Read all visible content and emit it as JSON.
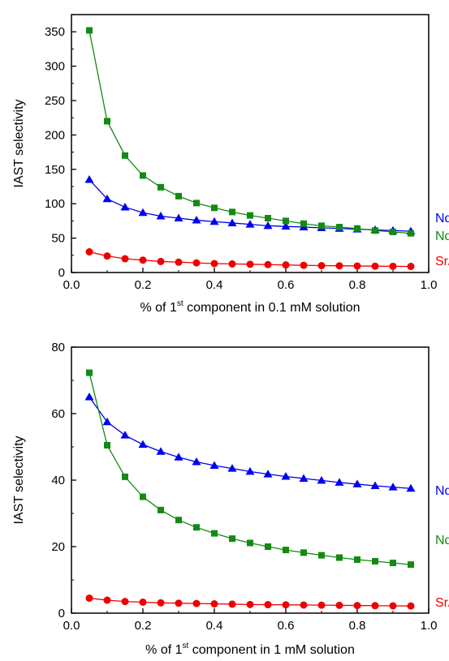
{
  "chart_data": [
    {
      "type": "line",
      "title": "",
      "ylabel": "IAST selectivity",
      "xlabel_parts": {
        "pre": "% of 1",
        "sup": "st",
        "post": " component in 0.1 mM solution"
      },
      "xlim": [
        0.0,
        1.0
      ],
      "ylim": [
        0,
        375
      ],
      "xticks": [
        0.0,
        0.2,
        0.4,
        0.6,
        0.8,
        1.0
      ],
      "xtick_labels": [
        "0.0",
        "0.2",
        "0.4",
        "0.6",
        "0.8",
        "1.0"
      ],
      "yticks": [
        0,
        50,
        100,
        150,
        200,
        250,
        300,
        350
      ],
      "ytick_labels": [
        "0",
        "50",
        "100",
        "150",
        "200",
        "250",
        "300",
        "350"
      ],
      "legend_placement": "right, labels at series end",
      "x": [
        0.05,
        0.1,
        0.15,
        0.2,
        0.25,
        0.3,
        0.35,
        0.4,
        0.45,
        0.5,
        0.55,
        0.6,
        0.65,
        0.7,
        0.75,
        0.8,
        0.85,
        0.9,
        0.95
      ],
      "series": [
        {
          "name": "Nd/Sr",
          "color": "#0000ee",
          "marker": "triangle",
          "values": [
            135,
            107,
            95,
            87,
            82,
            79,
            76,
            74,
            72,
            70,
            68,
            67,
            66,
            65,
            64,
            63,
            62,
            61,
            60
          ]
        },
        {
          "name": "Nd/Fe",
          "color": "#138a13",
          "marker": "square",
          "values": [
            352,
            220,
            170,
            141,
            124,
            111,
            101,
            94,
            88,
            83,
            79,
            75,
            71,
            68,
            66,
            64,
            61,
            59,
            57
          ]
        },
        {
          "name": "Sr/Fe",
          "color": "#ee0000",
          "marker": "circle",
          "values": [
            30,
            24,
            20,
            18,
            16,
            15,
            14,
            13,
            12.5,
            12,
            11.5,
            11,
            10.5,
            10,
            9.8,
            9.5,
            9.2,
            9,
            8.8
          ]
        }
      ]
    },
    {
      "type": "line",
      "title": "",
      "ylabel": "IAST selectivity",
      "xlabel_parts": {
        "pre": "% of 1",
        "sup": "st",
        "post": " component in 1 mM solution"
      },
      "xlim": [
        0.0,
        1.0
      ],
      "ylim": [
        0,
        80
      ],
      "xticks": [
        0.0,
        0.2,
        0.4,
        0.6,
        0.8,
        1.0
      ],
      "xtick_labels": [
        "0.0",
        "0.2",
        "0.4",
        "0.6",
        "0.8",
        "1.0"
      ],
      "yticks": [
        0,
        20,
        40,
        60,
        80
      ],
      "ytick_labels": [
        "0",
        "20",
        "40",
        "60",
        "80"
      ],
      "legend_placement": "right, labels at series end",
      "x": [
        0.05,
        0.1,
        0.15,
        0.2,
        0.25,
        0.3,
        0.35,
        0.4,
        0.45,
        0.5,
        0.55,
        0.6,
        0.65,
        0.7,
        0.75,
        0.8,
        0.85,
        0.9,
        0.95
      ],
      "series": [
        {
          "name": "Nd/Sr",
          "color": "#0000ee",
          "marker": "triangle",
          "values": [
            65,
            57.5,
            53.5,
            50.7,
            48.6,
            46.9,
            45.5,
            44.4,
            43.5,
            42.6,
            41.8,
            41.1,
            40.5,
            39.9,
            39.3,
            38.8,
            38.3,
            37.9,
            37.5
          ]
        },
        {
          "name": "Nd/Fe",
          "color": "#138a13",
          "marker": "square",
          "values": [
            72.3,
            50.5,
            41,
            35,
            31,
            28,
            25.8,
            24,
            22.4,
            21.1,
            20,
            19,
            18.2,
            17.4,
            16.7,
            16.1,
            15.6,
            15.1,
            14.6
          ]
        },
        {
          "name": "Sr/Fe",
          "color": "#ee0000",
          "marker": "circle",
          "values": [
            4.5,
            3.9,
            3.5,
            3.3,
            3.1,
            3.0,
            2.9,
            2.8,
            2.7,
            2.6,
            2.55,
            2.5,
            2.45,
            2.4,
            2.35,
            2.3,
            2.25,
            2.2,
            2.15
          ]
        }
      ]
    }
  ]
}
